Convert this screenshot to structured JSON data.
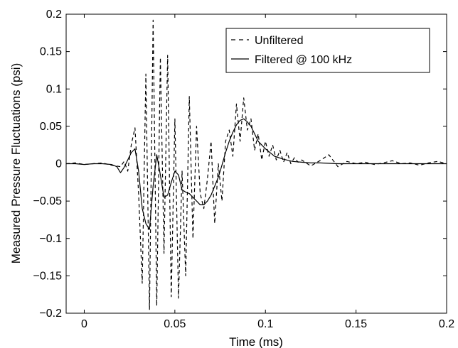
{
  "chart_data": {
    "type": "line",
    "title": "",
    "xlabel": "Time (ms)",
    "ylabel": "Measured Pressure Fluctuations (psi)",
    "xlim": [
      -0.01,
      0.2
    ],
    "ylim": [
      -0.2,
      0.2
    ],
    "xticks": [
      0,
      0.05,
      0.1,
      0.15,
      0.2
    ],
    "xtick_labels": [
      "0",
      "0.05",
      "0.1",
      "0.15",
      "0.2"
    ],
    "yticks": [
      -0.2,
      -0.15,
      -0.1,
      -0.05,
      0,
      0.05,
      0.1,
      0.15,
      0.2
    ],
    "ytick_labels": [
      "−0.2",
      "−0.15",
      "−0.1",
      "−0.05",
      "0",
      "0.05",
      "0.1",
      "0.15",
      "0.2"
    ],
    "grid": false,
    "legend_position": "top-right",
    "series": [
      {
        "name": "Unfiltered",
        "style": "dashed",
        "color": "#000000",
        "x": [
          -0.01,
          -0.005,
          0.0,
          0.005,
          0.01,
          0.015,
          0.02,
          0.022,
          0.024,
          0.026,
          0.028,
          0.03,
          0.032,
          0.034,
          0.036,
          0.038,
          0.04,
          0.042,
          0.044,
          0.046,
          0.048,
          0.05,
          0.052,
          0.054,
          0.056,
          0.058,
          0.06,
          0.062,
          0.064,
          0.066,
          0.068,
          0.07,
          0.072,
          0.074,
          0.076,
          0.078,
          0.08,
          0.082,
          0.084,
          0.086,
          0.088,
          0.09,
          0.092,
          0.094,
          0.096,
          0.098,
          0.1,
          0.102,
          0.104,
          0.106,
          0.108,
          0.11,
          0.112,
          0.114,
          0.116,
          0.118,
          0.12,
          0.125,
          0.13,
          0.135,
          0.14,
          0.145,
          0.15,
          0.155,
          0.16,
          0.165,
          0.17,
          0.175,
          0.18,
          0.185,
          0.19,
          0.195,
          0.2
        ],
        "y": [
          0.0,
          0.001,
          -0.001,
          0.0,
          0.001,
          -0.002,
          -0.004,
          0.003,
          -0.01,
          0.026,
          0.048,
          -0.04,
          -0.16,
          0.12,
          -0.195,
          0.192,
          -0.19,
          0.142,
          -0.12,
          0.145,
          -0.178,
          0.06,
          -0.18,
          -0.01,
          -0.15,
          0.09,
          -0.1,
          0.05,
          -0.04,
          -0.06,
          -0.02,
          0.03,
          -0.08,
          0.0,
          -0.05,
          0.03,
          0.045,
          0.01,
          0.08,
          0.03,
          0.088,
          0.045,
          0.06,
          0.018,
          0.04,
          0.005,
          0.03,
          0.01,
          0.025,
          0.005,
          0.018,
          0.002,
          0.015,
          0.0,
          0.008,
          0.002,
          0.005,
          -0.003,
          0.004,
          0.012,
          -0.004,
          0.003,
          0.0,
          0.002,
          -0.001,
          0.001,
          0.004,
          0.0,
          0.001,
          -0.002,
          0.001,
          0.003,
          0.0
        ]
      },
      {
        "name": "Filtered @ 100 kHz",
        "style": "solid",
        "color": "#000000",
        "x": [
          -0.01,
          -0.005,
          0.0,
          0.005,
          0.01,
          0.015,
          0.018,
          0.02,
          0.022,
          0.024,
          0.026,
          0.028,
          0.03,
          0.032,
          0.034,
          0.036,
          0.038,
          0.04,
          0.042,
          0.044,
          0.046,
          0.048,
          0.05,
          0.052,
          0.054,
          0.056,
          0.058,
          0.06,
          0.062,
          0.064,
          0.066,
          0.068,
          0.07,
          0.072,
          0.074,
          0.076,
          0.078,
          0.08,
          0.082,
          0.084,
          0.086,
          0.088,
          0.09,
          0.092,
          0.094,
          0.096,
          0.098,
          0.1,
          0.105,
          0.11,
          0.115,
          0.12,
          0.125,
          0.13,
          0.14,
          0.15,
          0.16,
          0.17,
          0.18,
          0.19,
          0.2
        ],
        "y": [
          0.0,
          0.0,
          -0.001,
          0.0,
          0.0,
          -0.001,
          -0.004,
          -0.012,
          -0.005,
          0.005,
          0.015,
          0.02,
          -0.01,
          -0.06,
          -0.08,
          -0.088,
          -0.03,
          0.012,
          -0.015,
          -0.045,
          -0.042,
          -0.025,
          -0.01,
          -0.015,
          -0.035,
          -0.038,
          -0.04,
          -0.045,
          -0.05,
          -0.055,
          -0.055,
          -0.05,
          -0.042,
          -0.03,
          -0.018,
          -0.002,
          0.015,
          0.03,
          0.042,
          0.052,
          0.058,
          0.06,
          0.056,
          0.05,
          0.04,
          0.03,
          0.025,
          0.02,
          0.01,
          0.006,
          0.003,
          0.002,
          0.001,
          0.001,
          0.0,
          0.0,
          0.0,
          0.0,
          0.0,
          0.0,
          0.0
        ]
      }
    ]
  }
}
